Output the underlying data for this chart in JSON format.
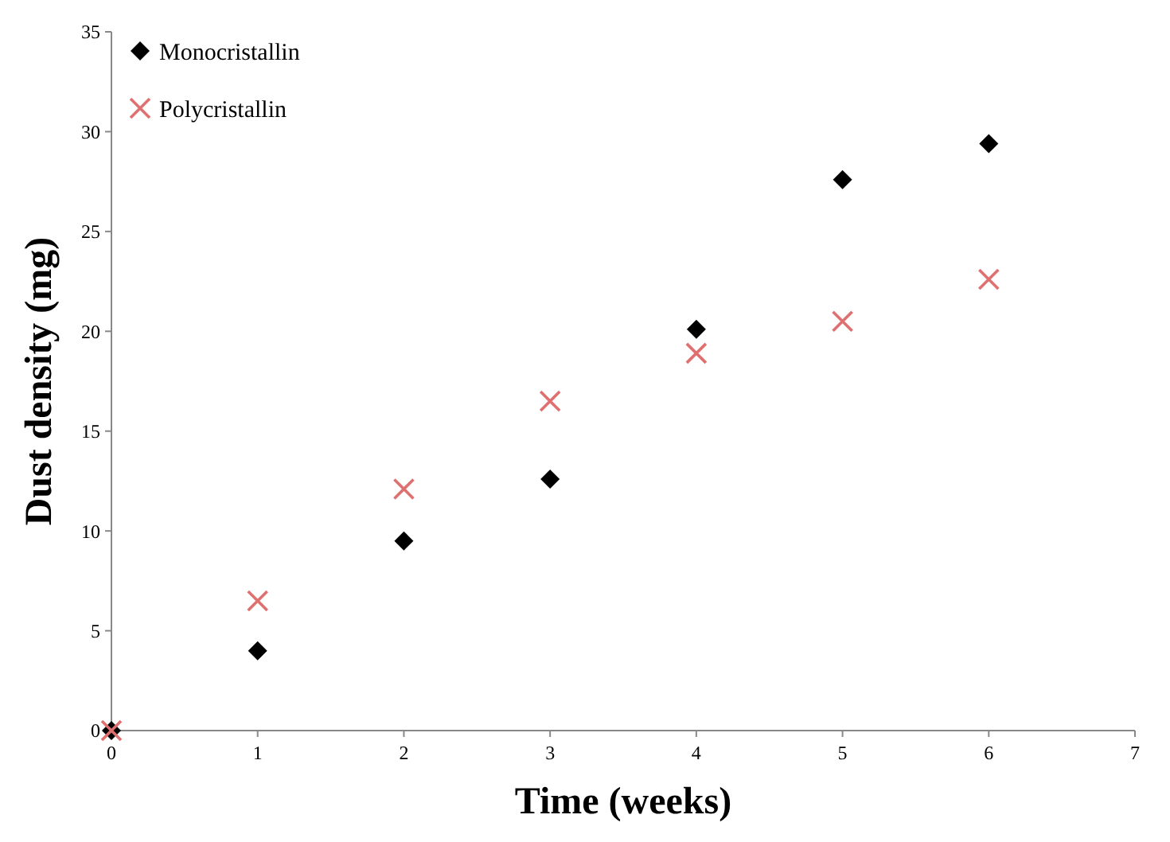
{
  "chart_data": {
    "type": "scatter",
    "xlabel": "Time (weeks)",
    "ylabel": "Dust density (mg)",
    "x": [
      0,
      1,
      2,
      3,
      4,
      5,
      6
    ],
    "series": [
      {
        "name": "Monocristallin",
        "color": "#000000",
        "marker": "diamond",
        "values": [
          0,
          4.0,
          9.5,
          12.6,
          20.1,
          27.6,
          29.4
        ]
      },
      {
        "name": "Polycristallin",
        "color": "#e07070",
        "marker": "cross",
        "values": [
          0,
          6.5,
          12.1,
          16.5,
          18.9,
          20.5,
          22.6
        ]
      }
    ],
    "xlim": [
      0,
      7
    ],
    "xticks": [
      0,
      1,
      2,
      3,
      4,
      5,
      6,
      7
    ],
    "ylim": [
      0,
      35
    ],
    "yticks": [
      0,
      5,
      10,
      15,
      20,
      25,
      30,
      35
    ],
    "grid": false,
    "legend": "top left"
  }
}
